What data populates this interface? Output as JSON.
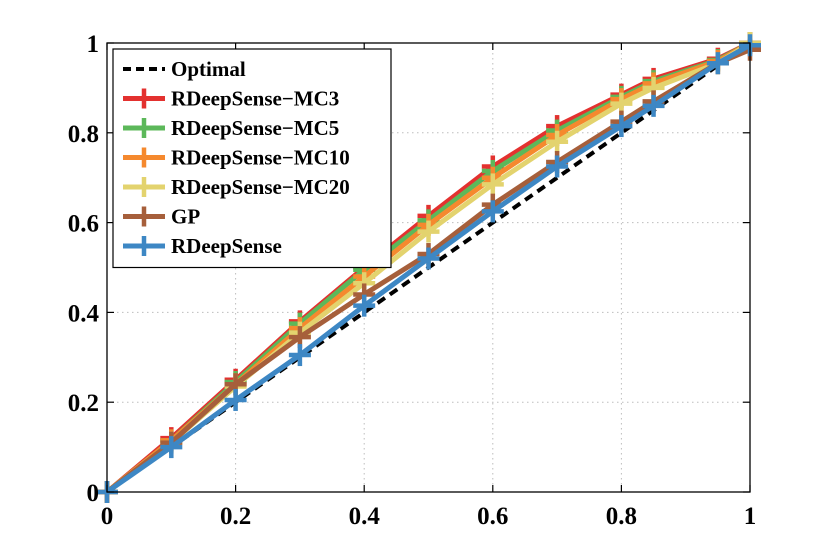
{
  "chart_data": {
    "type": "line",
    "title": "",
    "xlabel": "",
    "ylabel": "",
    "xlim": [
      0,
      1
    ],
    "ylim": [
      0,
      1
    ],
    "grid": true,
    "legend_position": "top-left",
    "x_ticks": [
      "0",
      "0.2",
      "0.4",
      "0.6",
      "0.8",
      "1"
    ],
    "y_ticks": [
      "0",
      "0.2",
      "0.4",
      "0.6",
      "0.8",
      "1"
    ],
    "series": [
      {
        "name": "Optimal",
        "color": "#000000",
        "dashed": true,
        "marker": false,
        "x": [
          0,
          1
        ],
        "y": [
          0,
          1
        ]
      },
      {
        "name": "RDeepSense−MC3",
        "color": "#e3312f",
        "dashed": false,
        "marker": true,
        "x": [
          0,
          0.1,
          0.2,
          0.3,
          0.4,
          0.5,
          0.6,
          0.7,
          0.8,
          0.85,
          0.95,
          1
        ],
        "y": [
          0,
          0.12,
          0.25,
          0.38,
          0.5,
          0.615,
          0.725,
          0.815,
          0.885,
          0.92,
          0.965,
          1
        ]
      },
      {
        "name": "RDeepSense−MC5",
        "color": "#5cb85a",
        "dashed": false,
        "marker": true,
        "x": [
          0,
          0.1,
          0.2,
          0.3,
          0.4,
          0.5,
          0.6,
          0.7,
          0.8,
          0.85,
          0.95,
          1
        ],
        "y": [
          0,
          0.115,
          0.245,
          0.375,
          0.495,
          0.605,
          0.715,
          0.805,
          0.88,
          0.915,
          0.962,
          1
        ]
      },
      {
        "name": "RDeepSense−MC10",
        "color": "#f5892e",
        "dashed": false,
        "marker": true,
        "x": [
          0,
          0.1,
          0.2,
          0.3,
          0.4,
          0.5,
          0.6,
          0.7,
          0.8,
          0.85,
          0.95,
          1
        ],
        "y": [
          0,
          0.115,
          0.24,
          0.365,
          0.48,
          0.595,
          0.7,
          0.795,
          0.875,
          0.91,
          0.96,
          1
        ]
      },
      {
        "name": "RDeepSense−MC20",
        "color": "#e3d36e",
        "dashed": false,
        "marker": true,
        "x": [
          0,
          0.1,
          0.2,
          0.3,
          0.4,
          0.5,
          0.6,
          0.7,
          0.8,
          0.85,
          0.95,
          1
        ],
        "y": [
          0,
          0.11,
          0.235,
          0.355,
          0.465,
          0.58,
          0.685,
          0.78,
          0.865,
          0.9,
          0.955,
          1
        ]
      },
      {
        "name": "GP",
        "color": "#a65f3b",
        "dashed": false,
        "marker": true,
        "x": [
          0,
          0.1,
          0.2,
          0.3,
          0.4,
          0.5,
          0.6,
          0.7,
          0.8,
          0.85,
          0.95,
          1
        ],
        "y": [
          0,
          0.11,
          0.24,
          0.345,
          0.44,
          0.53,
          0.64,
          0.735,
          0.825,
          0.87,
          0.955,
          0.985
        ]
      },
      {
        "name": "RDeepSense",
        "color": "#3d87c4",
        "dashed": false,
        "marker": true,
        "x": [
          0,
          0.1,
          0.2,
          0.3,
          0.4,
          0.5,
          0.6,
          0.7,
          0.8,
          0.85,
          0.95,
          1
        ],
        "y": [
          0,
          0.1,
          0.205,
          0.305,
          0.415,
          0.52,
          0.625,
          0.725,
          0.815,
          0.86,
          0.955,
          0.995
        ]
      }
    ]
  }
}
